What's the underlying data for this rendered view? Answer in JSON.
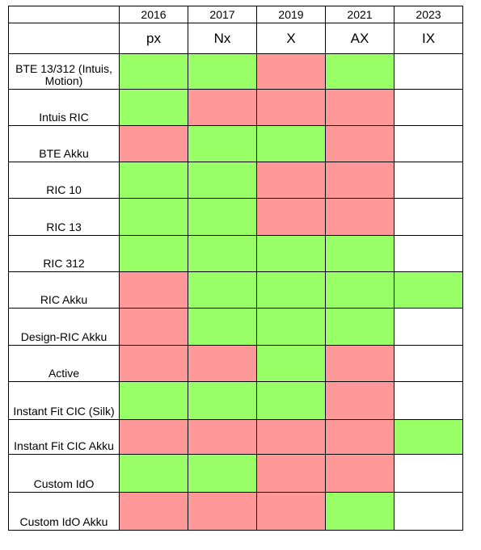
{
  "table": {
    "years": [
      "2016",
      "2017",
      "2019",
      "2021",
      "2023"
    ],
    "models": [
      "px",
      "Nx",
      "X",
      "AX",
      "IX"
    ],
    "colors": {
      "green": "#99ff66",
      "red": "#ff9999",
      "white": "#ffffff"
    },
    "rows": [
      {
        "label": "BTE 13/312 (Intuis, Motion)",
        "cells": [
          "green",
          "green",
          "red",
          "green",
          "white"
        ]
      },
      {
        "label": "Intuis RIC",
        "cells": [
          "green",
          "red",
          "red",
          "red",
          "white"
        ]
      },
      {
        "label": "BTE Akku",
        "cells": [
          "red",
          "green",
          "green",
          "red",
          "white"
        ]
      },
      {
        "label": "RIC 10",
        "cells": [
          "green",
          "green",
          "red",
          "red",
          "white"
        ]
      },
      {
        "label": "RIC 13",
        "cells": [
          "green",
          "green",
          "red",
          "red",
          "white"
        ]
      },
      {
        "label": "RIC 312",
        "cells": [
          "green",
          "green",
          "green",
          "green",
          "white"
        ]
      },
      {
        "label": "RIC Akku",
        "cells": [
          "red",
          "green",
          "green",
          "green",
          "green"
        ]
      },
      {
        "label": "Design-RIC Akku",
        "cells": [
          "red",
          "green",
          "green",
          "green",
          "white"
        ]
      },
      {
        "label": "Active",
        "cells": [
          "red",
          "red",
          "green",
          "red",
          "white"
        ]
      },
      {
        "label": "Instant Fit CIC (Silk)",
        "cells": [
          "green",
          "green",
          "green",
          "red",
          "white"
        ]
      },
      {
        "label": "Instant Fit CIC Akku",
        "cells": [
          "red",
          "red",
          "red",
          "red",
          "green"
        ]
      },
      {
        "label": "Custom IdO",
        "cells": [
          "green",
          "green",
          "red",
          "red",
          "white"
        ]
      },
      {
        "label": "Custom IdO Akku",
        "cells": [
          "red",
          "red",
          "red",
          "green",
          "white"
        ]
      }
    ]
  }
}
